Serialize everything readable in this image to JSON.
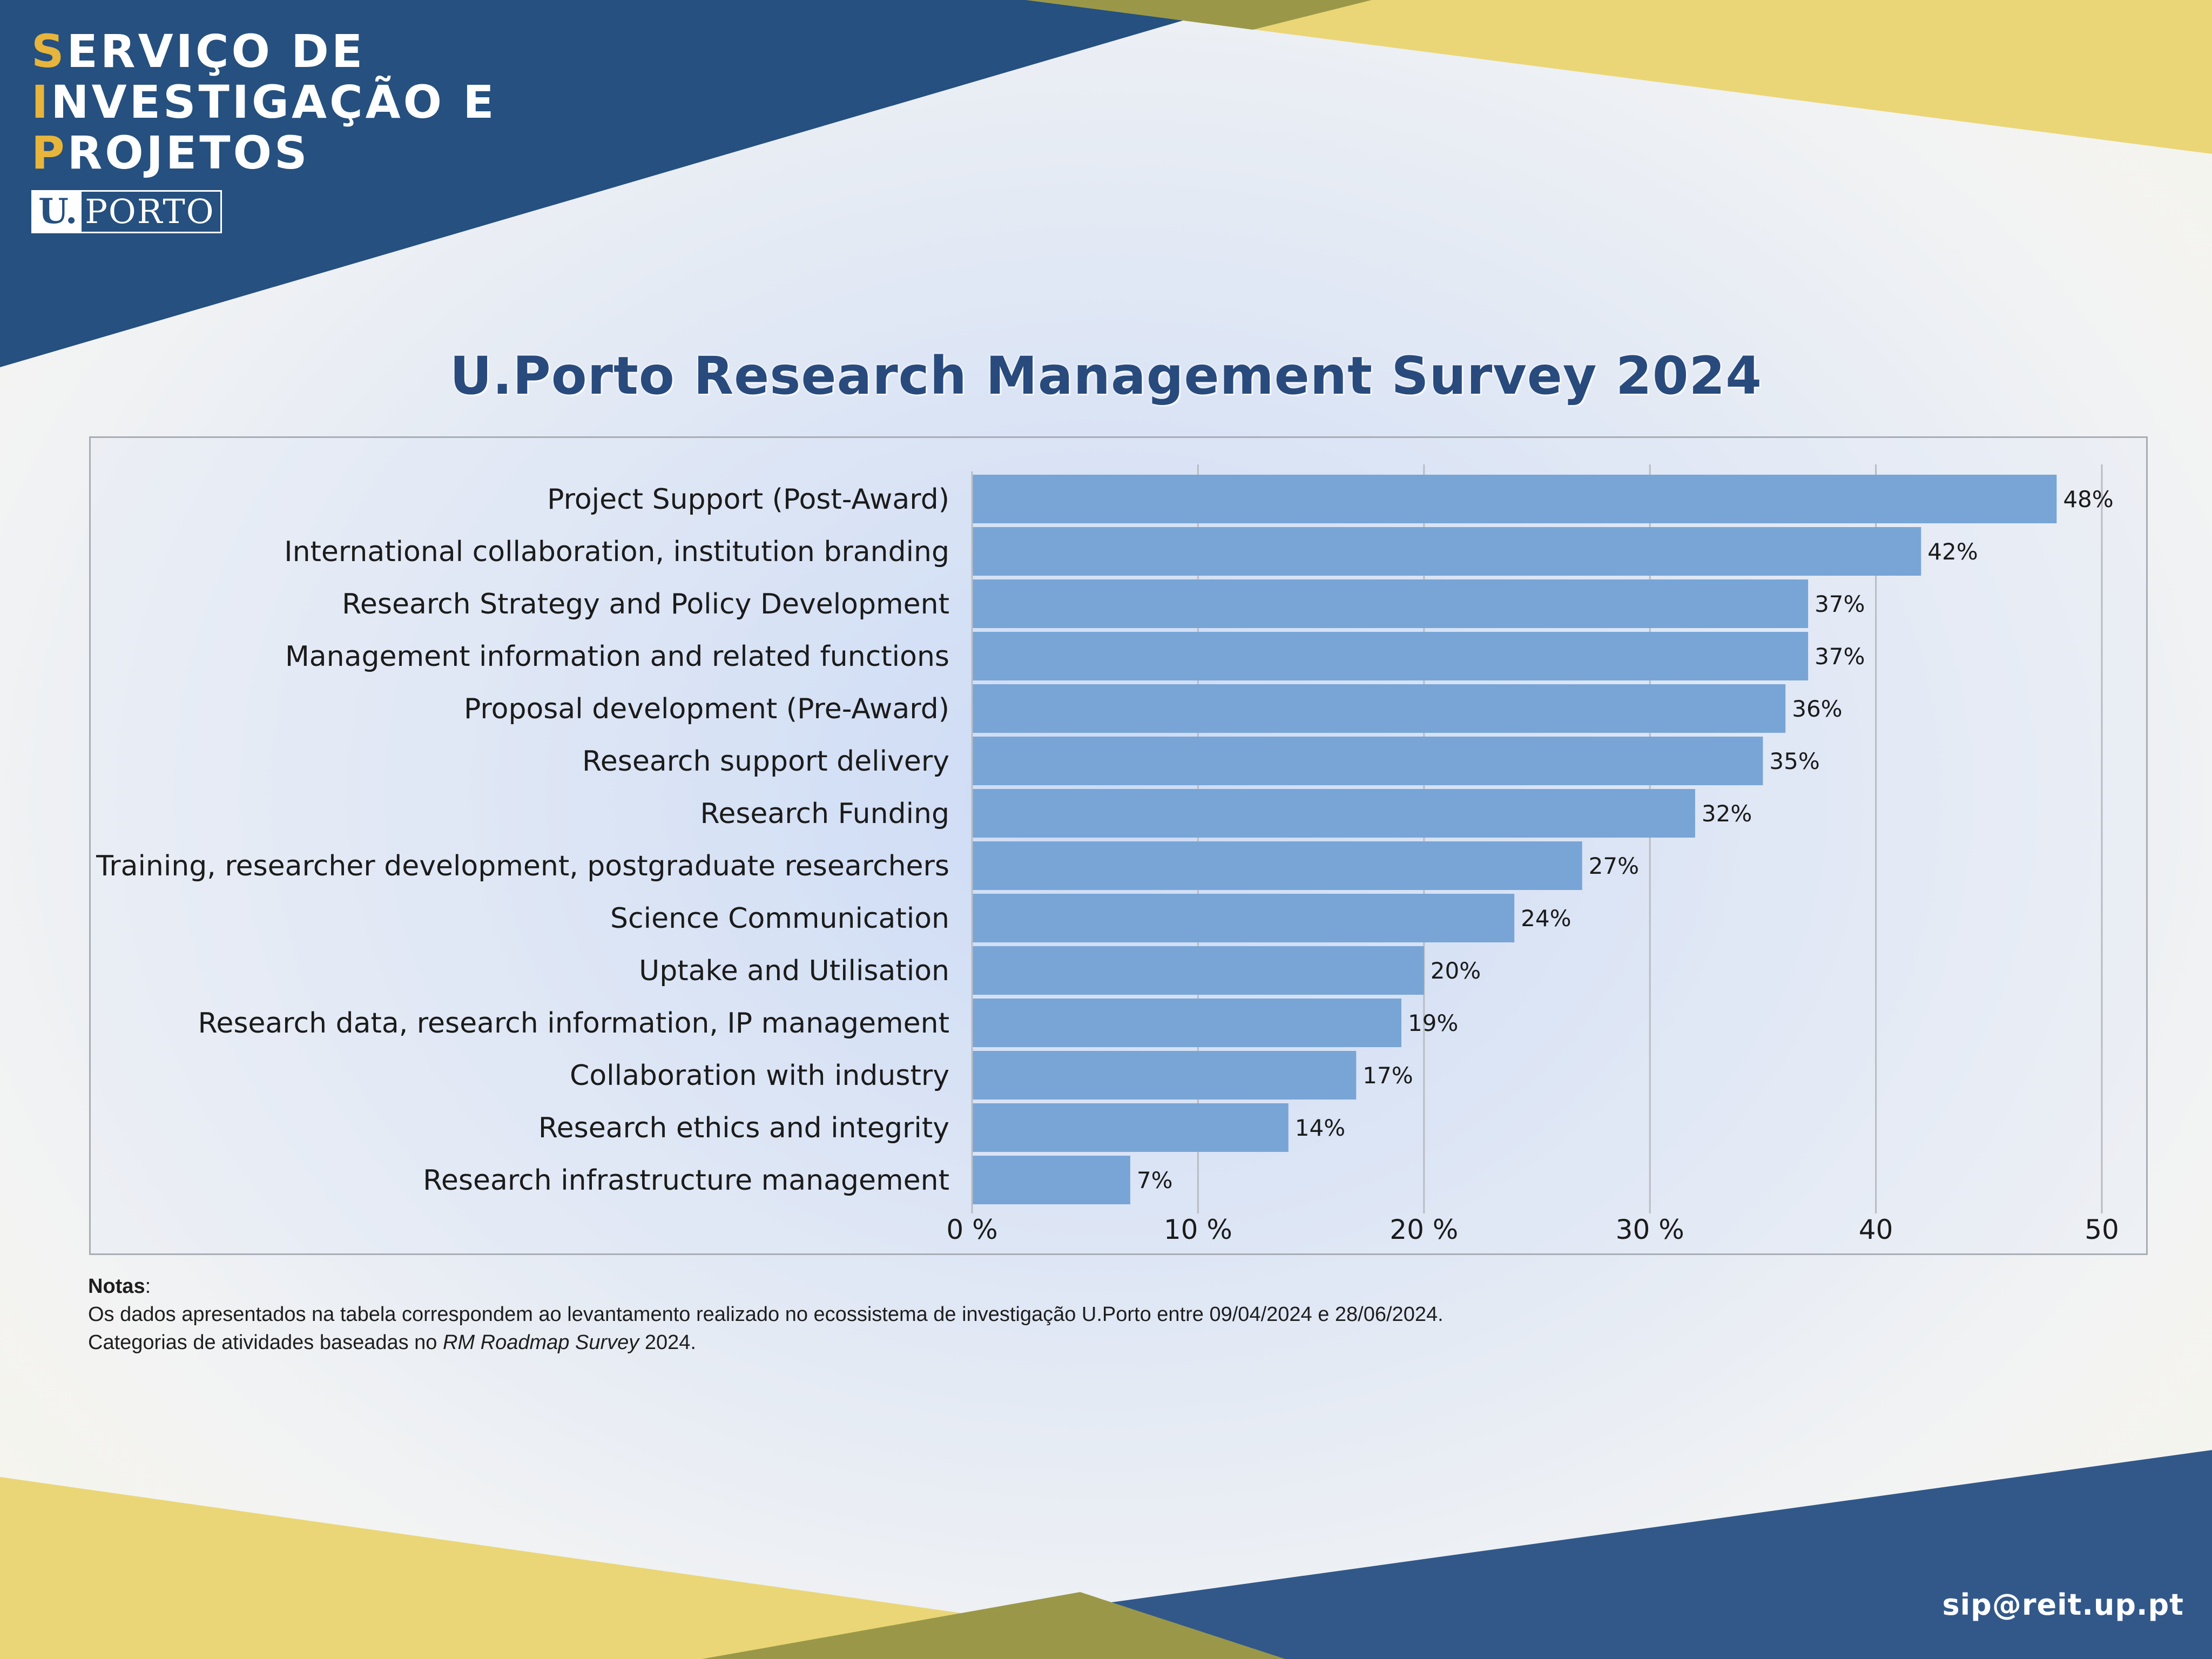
{
  "header": {
    "logo_lines": [
      {
        "initial": "S",
        "rest": "ERVIÇO DE"
      },
      {
        "initial": "I",
        "rest": "NVESTIGAÇÃO E"
      },
      {
        "initial": "P",
        "rest": "ROJETOS"
      }
    ],
    "uporto_u": "U.",
    "uporto_porto": "PORTO"
  },
  "colors": {
    "navy": "#25507f",
    "gold": "#ead676",
    "olive": "#9a9848",
    "bar": "#78a5d6",
    "grid": "#b9bcc2",
    "label": "#1b1b1b"
  },
  "chart_data": {
    "type": "bar",
    "orientation": "horizontal",
    "title": "U.Porto Research Management Survey 2024",
    "categories": [
      "Project Support (Post-Award)",
      "International collaboration, institution branding",
      "Research Strategy and Policy Development",
      "Management information and related functions",
      "Proposal development (Pre-Award)",
      "Research support delivery",
      "Research Funding",
      "Training, researcher development, postgraduate researchers",
      "Science Communication",
      "Uptake and Utilisation",
      "Research data, research information, IP management",
      "Collaboration with industry",
      "Research ethics and integrity",
      "Research infrastructure management"
    ],
    "values": [
      48,
      42,
      37,
      37,
      36,
      35,
      32,
      27,
      24,
      20,
      19,
      17,
      14,
      7
    ],
    "value_labels": [
      "48%",
      "42%",
      "37%",
      "37%",
      "36%",
      "35%",
      "32%",
      "27%",
      "24%",
      "20%",
      "19%",
      "17%",
      "14%",
      "7%"
    ],
    "xlim": [
      0,
      50
    ],
    "xticks": [
      0,
      10,
      20,
      30,
      40,
      50
    ],
    "xtick_labels": [
      "0 %",
      "10 %",
      "20 %",
      "30 %",
      "40",
      "50"
    ],
    "xlabel": "",
    "ylabel": "",
    "grid": true,
    "legend": "none"
  },
  "notes": {
    "heading": "Notas",
    "line1": "Os dados apresentados na tabela correspondem ao levantamento realizado no ecossistema de investigação U.Porto entre 09/04/2024 e 28/06/2024.",
    "line2_prefix": "Categorias de atividades baseadas no ",
    "line2_italic": "RM Roadmap Survey",
    "line2_suffix": " 2024."
  },
  "footer": {
    "email": "sip@reit.up.pt"
  }
}
